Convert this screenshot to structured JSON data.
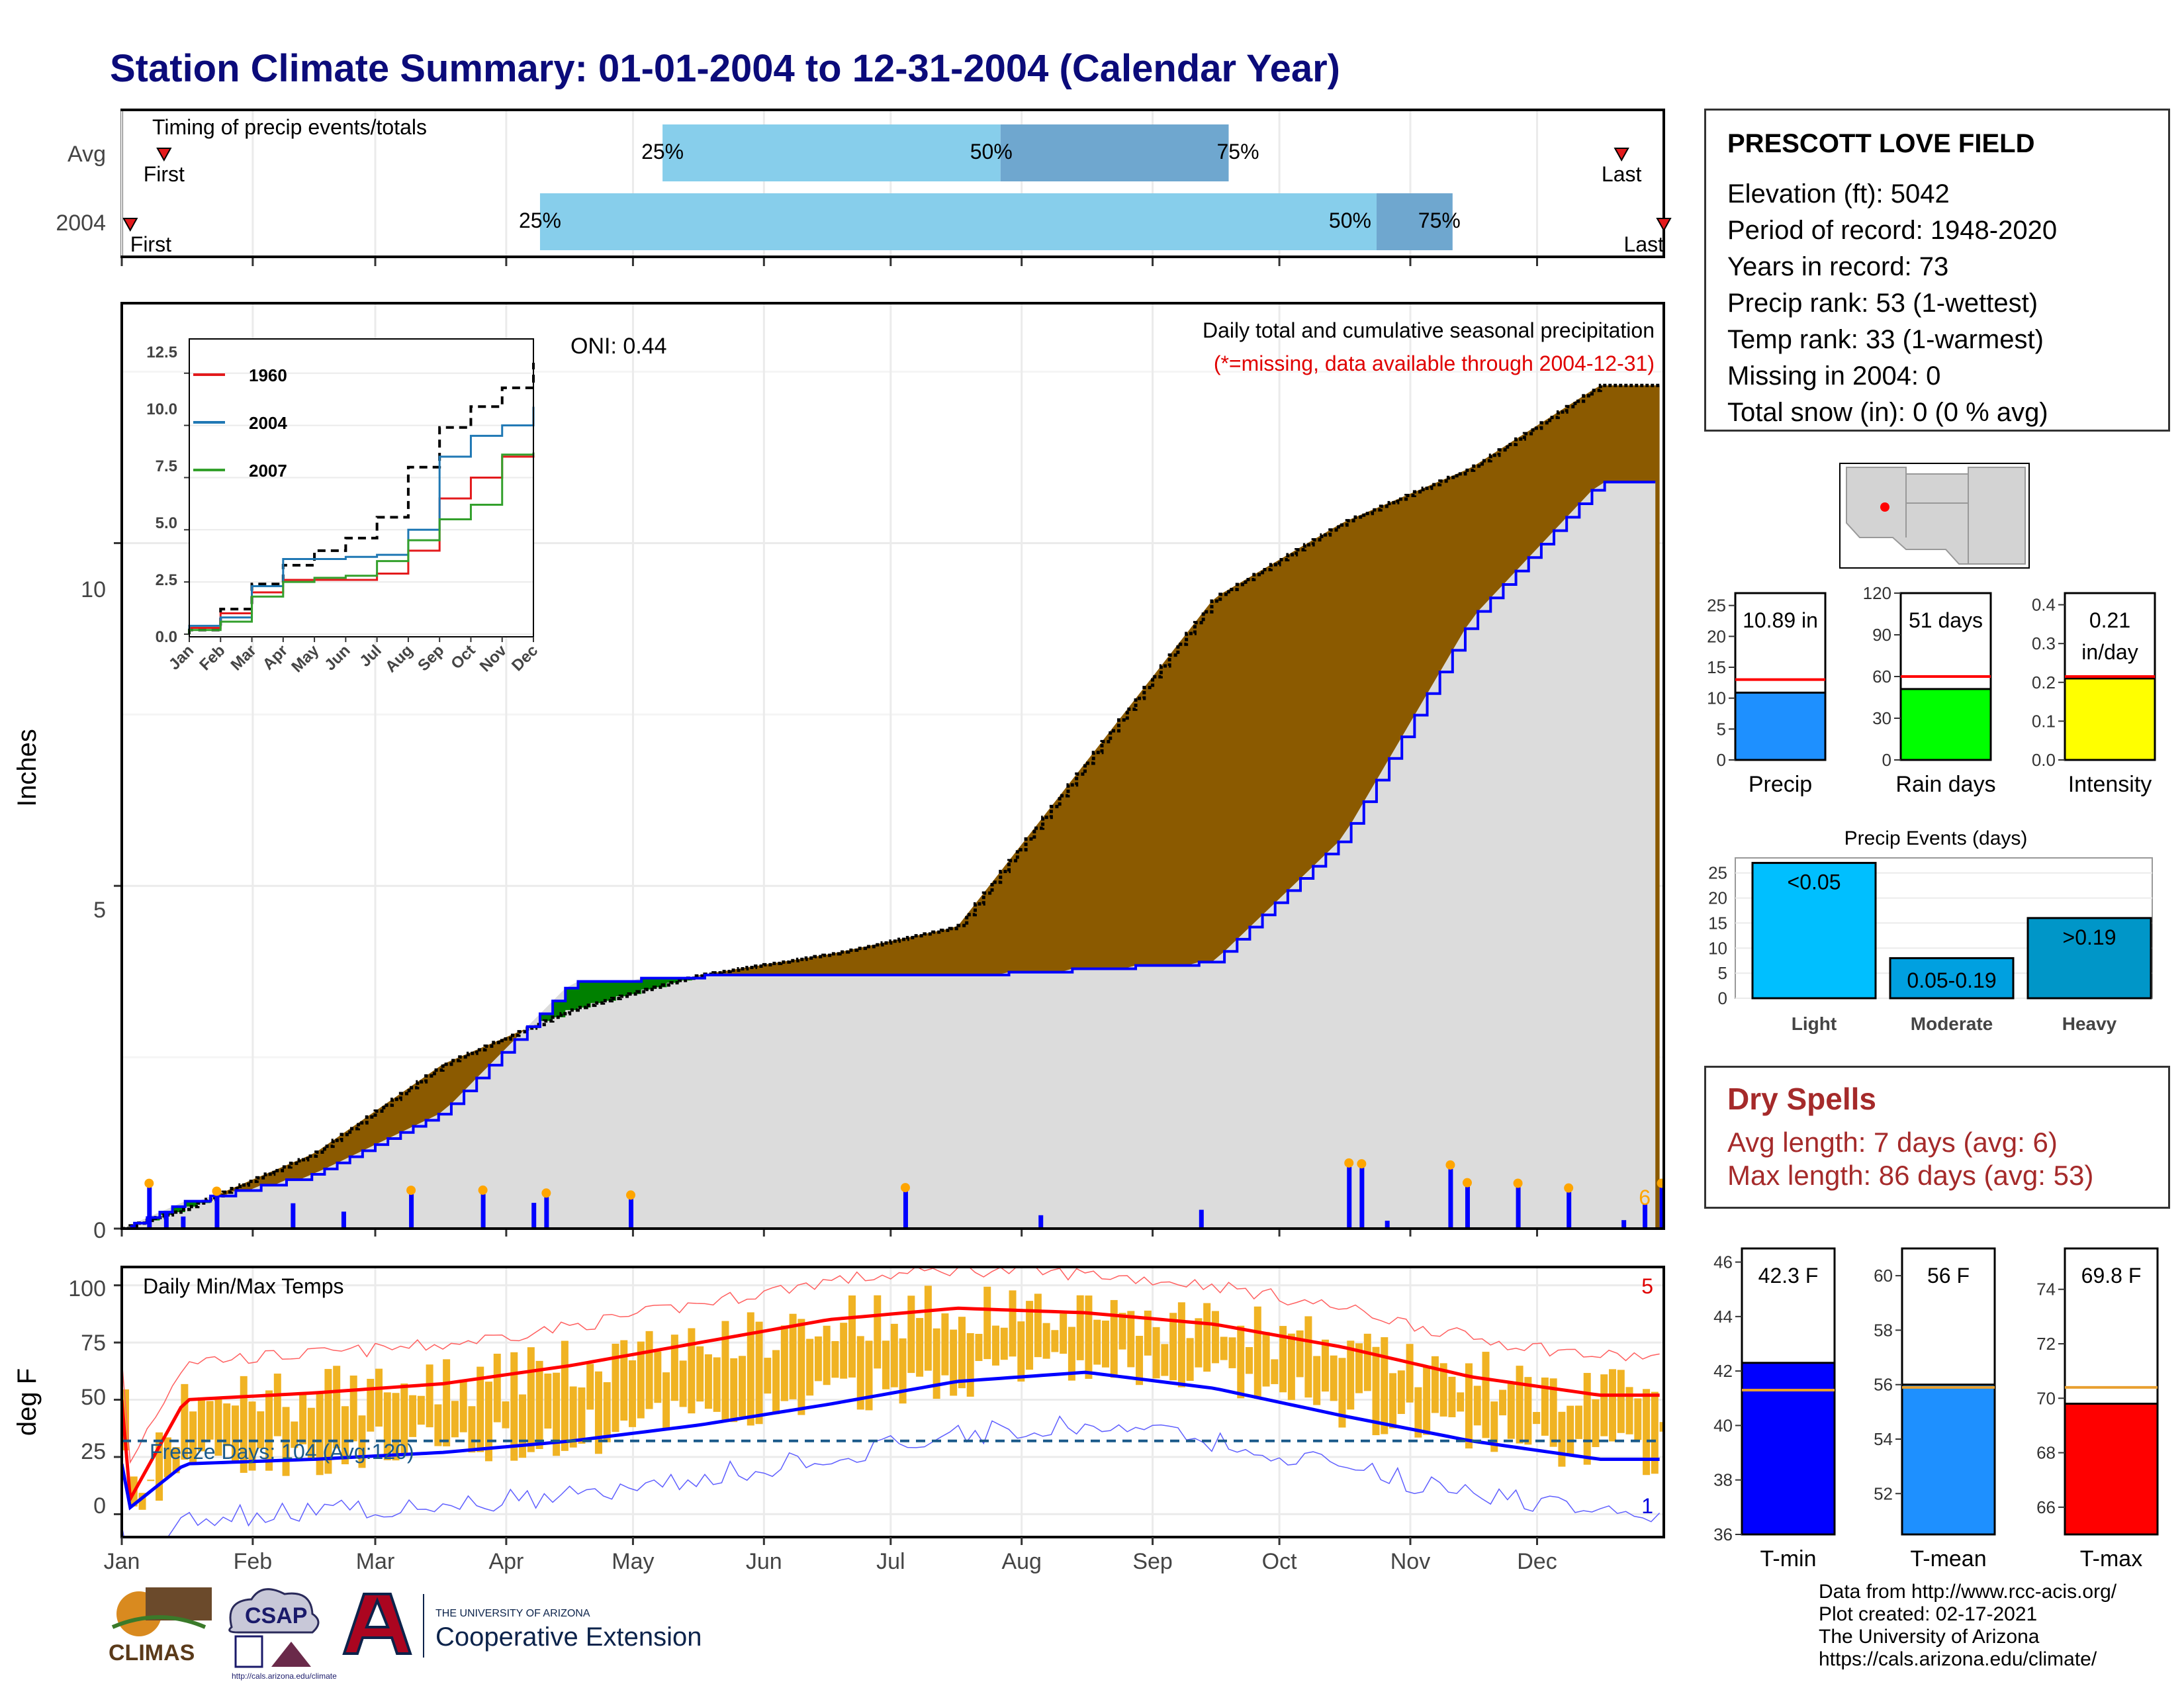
{
  "title": "Station Climate Summary: 01-01-2004 to 12-31-2004 (Calendar Year)",
  "timing": {
    "label": "Timing of precip events/totals",
    "rows": [
      {
        "name": "Avg",
        "first_label": "First",
        "last_label": "Last",
        "p25": "25%",
        "p50": "50%",
        "p75": "75%",
        "first_doy": 10,
        "last_doy": 355,
        "p25_doy": 128,
        "p50_doy": 208,
        "p75_doy": 262
      },
      {
        "name": "2004",
        "first_label": "First",
        "last_label": "Last",
        "p25": "25%",
        "p50": "50%",
        "p75": "75%",
        "first_doy": 2,
        "last_doy": 365,
        "p25_doy": 99,
        "p50_doy": 297,
        "p75_doy": 315
      }
    ],
    "colors": {
      "light": "#87ceeb",
      "dark": "#6fa7cf",
      "marker": "#e31a1c"
    }
  },
  "station": {
    "name": "PRESCOTT LOVE FIELD",
    "lines": [
      "Elevation (ft): 5042",
      "Period of record: 1948-2020",
      "Years in record: 73",
      "Precip rank: 53 (1-wettest)",
      "Temp rank: 33 (1-warmest)",
      "Missing in 2004: 0",
      "Total snow (in): 0 (0 % avg)"
    ]
  },
  "precip_panel": {
    "ylabel": "Inches",
    "y_ticks": [
      "0",
      "5",
      "10"
    ],
    "note1": "Daily total and cumulative seasonal precipitation",
    "note2": "(*=missing, data available through 2004-12-31)",
    "oni": "ONI: 0.44",
    "extreme_count": "6",
    "colors": {
      "avg_fill": "#8b5a00",
      "year_fill": "#dcdcdc",
      "wet_fill": "#008000",
      "line": "#0000ff",
      "bar": "#0000ff",
      "marker": "#ffa500"
    }
  },
  "inset": {
    "y_ticks": [
      "0.0",
      "2.5",
      "5.0",
      "7.5",
      "10.0",
      "12.5"
    ],
    "x_ticks": [
      "Jan",
      "Feb",
      "Mar",
      "Apr",
      "May",
      "Jun",
      "Jul",
      "Aug",
      "Sep",
      "Oct",
      "Nov",
      "Dec"
    ],
    "legend": [
      {
        "name": "1960",
        "color": "#e31a1c"
      },
      {
        "name": "2004",
        "color": "#1f78b4"
      },
      {
        "name": "2007",
        "color": "#33a02c"
      }
    ]
  },
  "temp_panel": {
    "ylabel": "deg F",
    "label": "Daily Min/Max Temps",
    "freeze": "Freeze Days: 104 (Avg:120)",
    "y_ticks": [
      "0",
      "25",
      "50",
      "75",
      "100"
    ],
    "x_ticks": [
      "Jan",
      "Feb",
      "Mar",
      "Apr",
      "May",
      "Jun",
      "Jul",
      "Aug",
      "Sep",
      "Oct",
      "Nov",
      "Dec"
    ],
    "hot_count": "5",
    "cold_count": "1",
    "colors": {
      "bar": "#f0b323",
      "max": "#ff0000",
      "min": "#0000ff",
      "freeze": "#1a5a8a"
    }
  },
  "map": {
    "state_fill": "#d3d3d3",
    "station_color": "#ff0000"
  },
  "summary_bars": [
    {
      "name": "Precip",
      "value_label": "10.89 in",
      "value": 10.89,
      "avg": 13.0,
      "ymax": 27,
      "ticks": [
        "0",
        "5",
        "10",
        "15",
        "20",
        "25"
      ],
      "color": "#1e90ff"
    },
    {
      "name": "Rain days",
      "value_label": "51 days",
      "value": 51,
      "avg": 60,
      "ymax": 120,
      "ticks": [
        "0",
        "30",
        "60",
        "90",
        "120"
      ],
      "color": "#00ff00"
    },
    {
      "name": "Intensity",
      "value_label": "0.21 in/day",
      "value": 0.21,
      "avg": 0.215,
      "ymax": 0.43,
      "ticks": [
        "0.0",
        "0.1",
        "0.2",
        "0.3",
        "0.4"
      ],
      "color": "#ffff00"
    }
  ],
  "events": {
    "title": "Precip Events (days)",
    "ticks": [
      "0",
      "5",
      "10",
      "15",
      "20",
      "25"
    ],
    "bars": [
      {
        "name": "Light",
        "label": "<0.05",
        "value": 27,
        "color": "#00bfff"
      },
      {
        "name": "Moderate",
        "label": "0.05-0.19",
        "value": 8,
        "color": "#00a0e0"
      },
      {
        "name": "Heavy",
        "label": ">0.19",
        "value": 16,
        "color": "#0096c8"
      }
    ]
  },
  "dry_spells": {
    "title": "Dry Spells",
    "lines": [
      "Avg length: 7 days (avg: 6)",
      "Max length: 86 days (avg: 53)"
    ]
  },
  "temp_bars": [
    {
      "name": "T-min",
      "value_label": "42.3 F",
      "value": 42.3,
      "avg": 41.3,
      "ymin": 36,
      "ymax": 46.5,
      "ticks": [
        "36",
        "38",
        "40",
        "42",
        "44",
        "46"
      ],
      "color": "#0000ff"
    },
    {
      "name": "T-mean",
      "value_label": "56 F",
      "value": 56.0,
      "avg": 55.9,
      "ymin": 50.5,
      "ymax": 61,
      "ticks": [
        "52",
        "54",
        "56",
        "58",
        "60"
      ],
      "color": "#1e90ff"
    },
    {
      "name": "T-max",
      "value_label": "69.8 F",
      "value": 69.8,
      "avg": 70.4,
      "ymin": 65,
      "ymax": 75.5,
      "ticks": [
        "66",
        "68",
        "70",
        "72",
        "74"
      ],
      "color": "#ff0000"
    }
  ],
  "footer": [
    "Data from http://www.rcc-acis.org/",
    "Plot created: 02-17-2021",
    "The University of Arizona",
    "https://cals.arizona.edu/climate/"
  ],
  "logos": {
    "climas": "CLIMAS",
    "csap": "CSAP",
    "csap_url": "http://cals.arizona.edu/climate",
    "ua_small": "THE UNIVERSITY OF ARIZONA",
    "ua_big": "Cooperative Extension"
  },
  "chart_data": [
    {
      "type": "area",
      "x": [
        "Jan",
        "Feb",
        "Mar",
        "Apr",
        "May",
        "Jun",
        "Jul",
        "Aug",
        "Sep",
        "Oct",
        "Nov",
        "Dec"
      ],
      "series": [
        {
          "name": "",
          "values": [
            0.3,
            1.1,
            2.4,
            3.2,
            3.7,
            4.0,
            4.4,
            6.8,
            9.2,
            10.3,
            11.1,
            12.3
          ]
        },
        {
          "name": "",
          "values": [
            0.4,
            0.8,
            1.7,
            3.6,
            3.7,
            3.7,
            3.7,
            3.8,
            3.9,
            5.7,
            8.9,
            10.89
          ]
        }
      ],
      "ylabel": "Inches",
      "ylim": [
        0,
        13.5
      ]
    },
    {
      "type": "line",
      "x": [
        "Jan",
        "Feb",
        "Mar",
        "Apr",
        "May",
        "Jun",
        "Jul",
        "Aug",
        "Sep",
        "Oct",
        "Nov",
        "Dec"
      ],
      "series": [
        {
          "name": "",
          "values": [
            0.2,
            1.2,
            2.4,
            3.3,
            4.0,
            4.6,
            5.6,
            8.0,
            9.9,
            10.9,
            11.8,
            13.0
          ]
        },
        {
          "name": "1960",
          "values": [
            0.3,
            1.0,
            2.0,
            2.6,
            2.6,
            2.6,
            2.9,
            4.0,
            6.5,
            7.5,
            8.5,
            8.7
          ]
        },
        {
          "name": "2004",
          "values": [
            0.4,
            0.8,
            2.3,
            3.6,
            3.6,
            3.7,
            3.8,
            5.0,
            8.5,
            9.5,
            10.0,
            10.89
          ]
        },
        {
          "name": "2007",
          "values": [
            0.2,
            0.6,
            1.8,
            2.5,
            2.7,
            2.8,
            3.5,
            4.5,
            5.5,
            6.2,
            8.6,
            8.7
          ]
        }
      ],
      "ylim": [
        0,
        13
      ]
    },
    {
      "type": "line",
      "x": [
        "Jan",
        "Feb",
        "Mar",
        "Apr",
        "May",
        "Jun",
        "Jul",
        "Aug",
        "Sep",
        "Oct",
        "Nov",
        "Dec"
      ],
      "series": [
        {
          "name": "",
          "values": [
            50,
            53,
            57,
            65,
            75,
            85,
            90,
            88,
            83,
            73,
            60,
            52
          ]
        },
        {
          "name": "",
          "values": [
            22,
            24,
            27,
            32,
            39,
            48,
            58,
            62,
            55,
            43,
            32,
            24
          ]
        }
      ],
      "ylabel": "deg F",
      "ylim": [
        -10,
        108
      ]
    }
  ]
}
